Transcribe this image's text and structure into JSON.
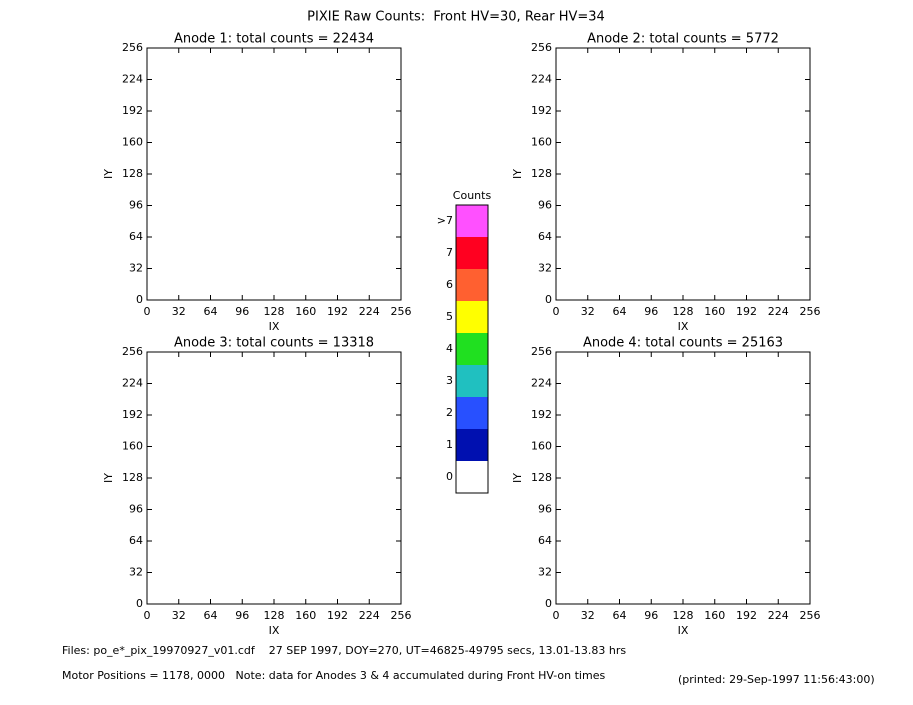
{
  "title": "PIXIE Raw Counts:  Front HV=30, Rear HV=34",
  "chart_data": [
    {
      "type": "image",
      "title": "Anode 1: total counts = 22434",
      "xlabel": "IX",
      "ylabel": "IY",
      "xlim": [
        0,
        256
      ],
      "ylim": [
        0,
        256
      ],
      "xticks": [
        0,
        32,
        64,
        96,
        128,
        160,
        192,
        224,
        256
      ],
      "yticks": [
        0,
        32,
        64,
        96,
        128,
        160,
        192,
        224,
        256
      ]
    },
    {
      "type": "image",
      "title": "Anode 2: total counts = 5772",
      "xlabel": "IX",
      "ylabel": "IY",
      "xlim": [
        0,
        256
      ],
      "ylim": [
        0,
        256
      ],
      "xticks": [
        0,
        32,
        64,
        96,
        128,
        160,
        192,
        224,
        256
      ],
      "yticks": [
        0,
        32,
        64,
        96,
        128,
        160,
        192,
        224,
        256
      ]
    },
    {
      "type": "image",
      "title": "Anode 3: total counts = 13318",
      "xlabel": "IX",
      "ylabel": "IY",
      "xlim": [
        0,
        256
      ],
      "ylim": [
        0,
        256
      ],
      "xticks": [
        0,
        32,
        64,
        96,
        128,
        160,
        192,
        224,
        256
      ],
      "yticks": [
        0,
        32,
        64,
        96,
        128,
        160,
        192,
        224,
        256
      ]
    },
    {
      "type": "image",
      "title": "Anode 4: total counts = 25163",
      "xlabel": "IX",
      "ylabel": "IY",
      "xlim": [
        0,
        256
      ],
      "ylim": [
        0,
        256
      ],
      "xticks": [
        0,
        32,
        64,
        96,
        128,
        160,
        192,
        224,
        256
      ],
      "yticks": [
        0,
        32,
        64,
        96,
        128,
        160,
        192,
        224,
        256
      ]
    },
    {
      "type": "colorbar",
      "title": "Counts",
      "categories": [
        "0",
        "1",
        "2",
        "3",
        "4",
        "5",
        "6",
        "7",
        ">7"
      ],
      "colors": [
        "#ffffff",
        "#0010b0",
        "#2850ff",
        "#20c0c0",
        "#20e020",
        "#ffff00",
        "#ff6030",
        "#ff0020",
        "#ff50ff"
      ]
    }
  ],
  "footer": [
    "Files: po_e*_pix_19970927_v01.cdf    27 SEP 1997, DOY=270, UT=46825-49795 secs, 13.01-13.83 hrs",
    "Motor Positions = 1178, 0000   Note: data for Anodes 3 & 4 accumulated during Front HV-on times",
    "(printed: 29-Sep-1997 11:56:43:00)"
  ]
}
